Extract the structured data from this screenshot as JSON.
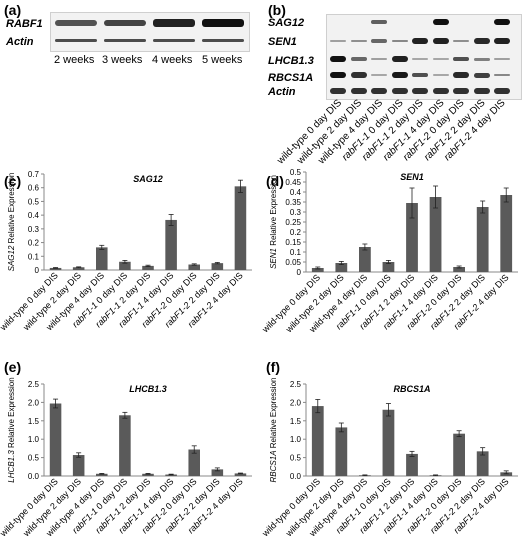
{
  "panel_a": {
    "label": "(a)",
    "genes": [
      "RABF1",
      "Actin"
    ],
    "timepoints": [
      "2 weeks",
      "3 weeks",
      "4 weeks",
      "5 weeks"
    ],
    "rabf1_band_strength": [
      0.55,
      0.65,
      0.9,
      1.0
    ],
    "actin_band_strength": [
      0.6,
      0.6,
      0.6,
      0.6
    ]
  },
  "panel_b": {
    "label": "(b)",
    "genes": [
      "SAG12",
      "SEN1",
      "LHCB1.3",
      "RBCS1A",
      "Actin"
    ],
    "lanes": [
      {
        "pre": "wild-type",
        "post": " 0 day DIS"
      },
      {
        "pre": "wild-type",
        "post": " 2 day DIS"
      },
      {
        "pre": "wild-type",
        "post": " 4 day DIS"
      },
      {
        "pre": "rabF1-1",
        "post": " 0 day DIS"
      },
      {
        "pre": "rabF1-1",
        "post": " 2 day DIS"
      },
      {
        "pre": "rabF1-1",
        "post": " 4 day DIS"
      },
      {
        "pre": "rabF1-2",
        "post": " 0 day DIS"
      },
      {
        "pre": "rabF1-2",
        "post": " 2 day DIS"
      },
      {
        "pre": "rabF1-2",
        "post": " 4 day DIS"
      }
    ],
    "band_strength": {
      "SAG12": [
        0,
        0,
        0.5,
        0,
        0,
        1.0,
        0,
        0,
        1.0
      ],
      "SEN1": [
        0.1,
        0.2,
        0.45,
        0.25,
        0.9,
        0.9,
        0.2,
        0.85,
        0.9
      ],
      "LHCB1.3": [
        1.0,
        0.45,
        0.1,
        0.9,
        0.05,
        0.05,
        0.6,
        0.3,
        0.1
      ],
      "RBCS1A": [
        1.0,
        0.8,
        0.05,
        0.95,
        0.6,
        0.05,
        0.85,
        0.7,
        0.25
      ],
      "Actin": [
        0.8,
        0.8,
        0.8,
        0.8,
        0.8,
        0.8,
        0.8,
        0.8,
        0.8
      ]
    }
  },
  "chart_data": [
    {
      "panel": "(c)",
      "type": "bar",
      "title": "SAG12",
      "ylabel_gene": "SAG12",
      "ylabel_rest": " Relative Expression",
      "ylim": [
        0,
        0.7
      ],
      "yticks": [
        "0",
        "0.1",
        "0.2",
        "0.3",
        "0.4",
        "0.5",
        "0.6",
        "0.7"
      ],
      "categories": [
        {
          "pre": "wild-type",
          "post": " 0 day DIS"
        },
        {
          "pre": "wild-type",
          "post": " 2 day DIS"
        },
        {
          "pre": "wild-type",
          "post": " 4 day DIS"
        },
        {
          "pre": "rabF1-1",
          "post": " 0 day DIS"
        },
        {
          "pre": "rabF1-1",
          "post": " 2 day DIS"
        },
        {
          "pre": "rabF1-1",
          "post": " 4 day DIS"
        },
        {
          "pre": "rabF1-2",
          "post": " 0 day DIS"
        },
        {
          "pre": "rabF1-2",
          "post": " 2 day DIS"
        },
        {
          "pre": "rabF1-2",
          "post": " 4 day DIS"
        }
      ],
      "values": [
        0.015,
        0.02,
        0.165,
        0.06,
        0.03,
        0.365,
        0.04,
        0.05,
        0.61
      ],
      "errors": [
        0.003,
        0.003,
        0.015,
        0.01,
        0.005,
        0.04,
        0.005,
        0.005,
        0.045
      ],
      "bar_color": "#5a5a5a"
    },
    {
      "panel": "(d)",
      "type": "bar",
      "title": "SEN1",
      "ylabel_gene": "SEN1",
      "ylabel_rest": " Relative Expression",
      "ylim": [
        0,
        0.5
      ],
      "yticks": [
        "0",
        "0.05",
        "0.1",
        "0.15",
        "0.2",
        "0.25",
        "0.3",
        "0.35",
        "0.4",
        "0.45",
        "0.5"
      ],
      "categories": [
        {
          "pre": "wild-type",
          "post": " 0 day DIS"
        },
        {
          "pre": "wild-type",
          "post": " 2 day DIS"
        },
        {
          "pre": "wild-type",
          "post": " 4 day DIS"
        },
        {
          "pre": "rabF1-1",
          "post": " 0 day DIS"
        },
        {
          "pre": "rabF1-1",
          "post": " 2 day DIS"
        },
        {
          "pre": "rabF1-1",
          "post": " 4 day DIS"
        },
        {
          "pre": "rabF1-2",
          "post": " 0 day DIS"
        },
        {
          "pre": "rabF1-2",
          "post": " 2 day DIS"
        },
        {
          "pre": "rabF1-2",
          "post": " 4 day DIS"
        }
      ],
      "values": [
        0.02,
        0.045,
        0.125,
        0.05,
        0.345,
        0.375,
        0.025,
        0.325,
        0.385
      ],
      "errors": [
        0.005,
        0.008,
        0.015,
        0.008,
        0.075,
        0.055,
        0.005,
        0.03,
        0.035
      ],
      "bar_color": "#5a5a5a"
    },
    {
      "panel": "(e)",
      "type": "bar",
      "title": "LHCB1.3",
      "ylabel_gene": "LHCB1.3",
      "ylabel_rest": " Relative Expression",
      "ylim": [
        0,
        2.5
      ],
      "yticks": [
        "0.0",
        "0.5",
        "1.0",
        "1.5",
        "2.0",
        "2.5"
      ],
      "categories": [
        {
          "pre": "wild-type",
          "post": " 0 day DIS"
        },
        {
          "pre": "wild-type",
          "post": " 2 day DIS"
        },
        {
          "pre": "wild-type",
          "post": " 4 day DIS"
        },
        {
          "pre": "rabF1-1",
          "post": " 0 day DIS"
        },
        {
          "pre": "rabF1-1",
          "post": " 2 day DIS"
        },
        {
          "pre": "rabF1-1",
          "post": " 4 day DIS"
        },
        {
          "pre": "rabF1-2",
          "post": " 0 day DIS"
        },
        {
          "pre": "rabF1-2",
          "post": " 2 day DIS"
        },
        {
          "pre": "rabF1-2",
          "post": " 4 day DIS"
        }
      ],
      "values": [
        1.97,
        0.57,
        0.06,
        1.65,
        0.06,
        0.04,
        0.72,
        0.18,
        0.07
      ],
      "errors": [
        0.12,
        0.06,
        0.01,
        0.08,
        0.01,
        0.01,
        0.1,
        0.04,
        0.01
      ],
      "bar_color": "#5a5a5a"
    },
    {
      "panel": "(f)",
      "type": "bar",
      "title": "RBCS1A",
      "ylabel_gene": "RBCS1A",
      "ylabel_rest": " Relative Expression",
      "ylim": [
        0,
        2.5
      ],
      "yticks": [
        "0.0",
        "0.5",
        "1.0",
        "1.5",
        "2.0",
        "2.5"
      ],
      "categories": [
        {
          "pre": "wild-type",
          "post": " 0 day DIS"
        },
        {
          "pre": "wild-type",
          "post": " 2 day DIS"
        },
        {
          "pre": "wild-type",
          "post": " 4 day DIS"
        },
        {
          "pre": "rabF1-1",
          "post": " 0 day DIS"
        },
        {
          "pre": "rabF1-1",
          "post": " 2 day DIS"
        },
        {
          "pre": "rabF1-1",
          "post": " 4 day DIS"
        },
        {
          "pre": "rabF1-2",
          "post": " 0 day DIS"
        },
        {
          "pre": "rabF1-2",
          "post": " 2 day DIS"
        },
        {
          "pre": "rabF1-2",
          "post": " 4 day DIS"
        }
      ],
      "values": [
        1.9,
        1.32,
        0.02,
        1.8,
        0.6,
        0.02,
        1.15,
        0.67,
        0.1
      ],
      "errors": [
        0.18,
        0.12,
        0.01,
        0.17,
        0.07,
        0.01,
        0.08,
        0.1,
        0.04
      ],
      "bar_color": "#5a5a5a"
    }
  ]
}
